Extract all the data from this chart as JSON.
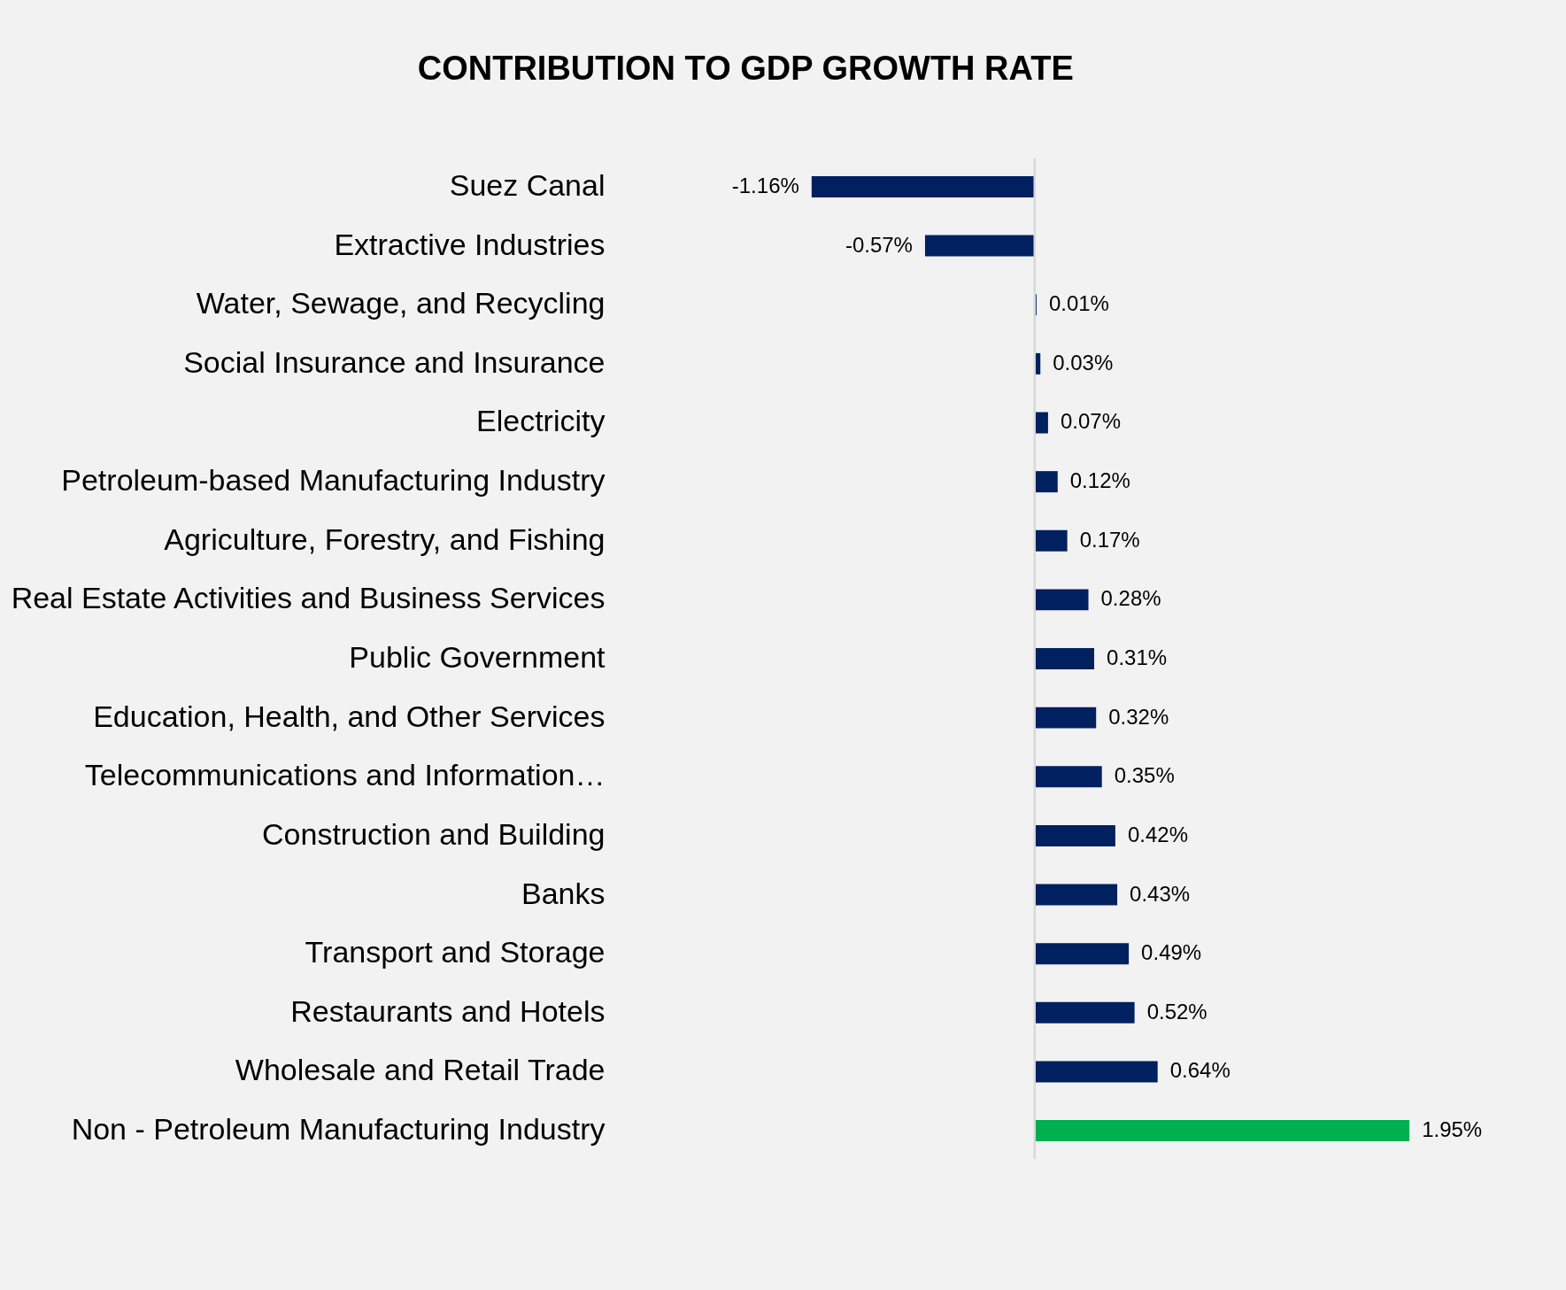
{
  "chart_data": {
    "type": "bar",
    "orientation": "horizontal",
    "title": "CONTRIBUTION TO GDP GROWTH RATE",
    "categories": [
      "Suez Canal",
      "Extractive Industries",
      "Water, Sewage, and Recycling",
      "Social Insurance and Insurance",
      "Electricity",
      "Petroleum-based Manufacturing Industry",
      "Agriculture, Forestry, and Fishing",
      "Real Estate Activities and Business Services",
      "Public Government",
      "Education, Health, and Other Services",
      "Telecommunications and Information…",
      "Construction and Building",
      "Banks",
      "Transport and Storage",
      "Restaurants and Hotels",
      "Wholesale and Retail Trade",
      "Non - Petroleum Manufacturing Industry"
    ],
    "values": [
      -1.16,
      -0.57,
      0.01,
      0.03,
      0.07,
      0.12,
      0.17,
      0.28,
      0.31,
      0.32,
      0.35,
      0.42,
      0.43,
      0.49,
      0.52,
      0.64,
      1.95
    ],
    "value_labels": [
      "-1.16%",
      "-0.57%",
      "0.01%",
      "0.03%",
      "0.07%",
      "0.12%",
      "0.17%",
      "0.28%",
      "0.31%",
      "0.32%",
      "0.35%",
      "0.42%",
      "0.43%",
      "0.49%",
      "0.52%",
      "0.64%",
      "1.95%"
    ],
    "colors": [
      "#002060",
      "#002060",
      "#002060",
      "#002060",
      "#002060",
      "#002060",
      "#002060",
      "#002060",
      "#002060",
      "#002060",
      "#002060",
      "#002060",
      "#002060",
      "#002060",
      "#002060",
      "#002060",
      "#00b050"
    ],
    "grid": false
  }
}
